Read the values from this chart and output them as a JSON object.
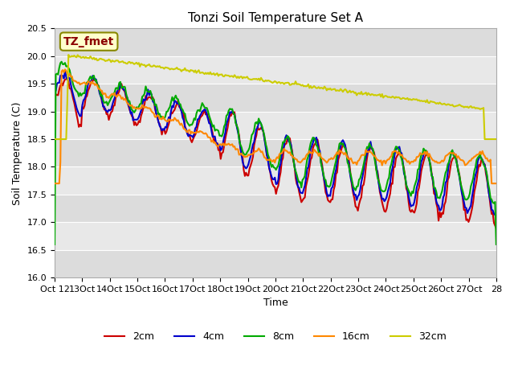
{
  "title": "Tonzi Soil Temperature Set A",
  "xlabel": "Time",
  "ylabel": "Soil Temperature (C)",
  "ylim": [
    16.0,
    20.5
  ],
  "annotation": "TZ_fmet",
  "annotation_color": "#8B0000",
  "annotation_bg": "#FFFFCC",
  "xtick_labels": [
    "Oct 12",
    "13Oct",
    "14Oct",
    "15Oct",
    "16Oct",
    "17Oct",
    "18Oct",
    "19Oct",
    "20Oct",
    "21Oct",
    "22Oct",
    "23Oct",
    "24Oct",
    "25Oct",
    "26Oct",
    "27Oct",
    "28"
  ],
  "ytick_vals": [
    16.0,
    16.5,
    17.0,
    17.5,
    18.0,
    18.5,
    19.0,
    19.5,
    20.0,
    20.5
  ],
  "series_colors": {
    "2cm": "#CC0000",
    "4cm": "#0000CC",
    "8cm": "#00AA00",
    "16cm": "#FF8800",
    "32cm": "#CCCC00"
  },
  "series_linewidth": 1.5,
  "legend_labels": [
    "2cm",
    "4cm",
    "8cm",
    "16cm",
    "32cm"
  ],
  "band_colors": [
    "#DCDCDC",
    "#E8E8E8"
  ]
}
